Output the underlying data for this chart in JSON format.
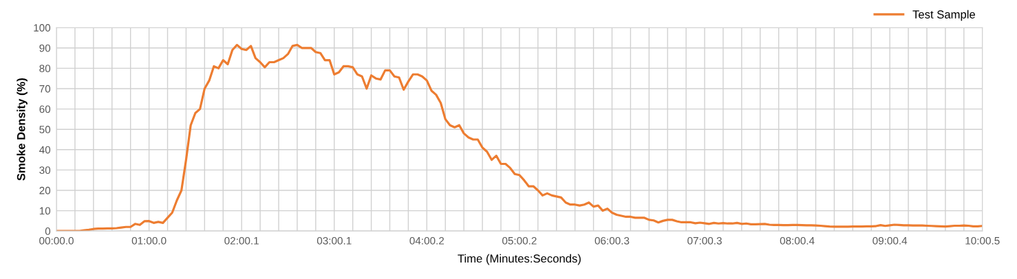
{
  "chart_data": {
    "type": "line",
    "xlabel": "Time (Minutes:Seconds)",
    "ylabel": "Smoke Density (%)",
    "ylim": [
      0,
      100
    ],
    "categories": [
      "00:00.0",
      null,
      null,
      null,
      null,
      null,
      null,
      null,
      null,
      null,
      null,
      null,
      null,
      null,
      null,
      null,
      null,
      null,
      null,
      null,
      "01:00.0",
      null,
      null,
      null,
      null,
      null,
      null,
      null,
      null,
      null,
      null,
      null,
      null,
      null,
      null,
      null,
      null,
      null,
      null,
      null,
      "02:00.1",
      null,
      null,
      null,
      null,
      null,
      null,
      null,
      null,
      null,
      null,
      null,
      null,
      null,
      null,
      null,
      null,
      null,
      null,
      null,
      "03:00.1",
      null,
      null,
      null,
      null,
      null,
      null,
      null,
      null,
      null,
      null,
      null,
      null,
      null,
      null,
      null,
      null,
      null,
      null,
      null,
      "04:00.2",
      null,
      null,
      null,
      null,
      null,
      null,
      null,
      null,
      null,
      null,
      null,
      null,
      null,
      null,
      null,
      null,
      null,
      null,
      null,
      "05:00.2",
      null,
      null,
      null,
      null,
      null,
      null,
      null,
      null,
      null,
      null,
      null,
      null,
      null,
      null,
      null,
      null,
      null,
      null,
      null,
      "06:00.3",
      null,
      null,
      null,
      null,
      null,
      null,
      null,
      null,
      null,
      null,
      null,
      null,
      null,
      null,
      null,
      null,
      null,
      null,
      null,
      "07:00.3",
      null,
      null,
      null,
      null,
      null,
      null,
      null,
      null,
      null,
      null,
      null,
      null,
      null,
      null,
      null,
      null,
      null,
      null,
      null,
      "08:00.4",
      null,
      null,
      null,
      null,
      null,
      null,
      null,
      null,
      null,
      null,
      null,
      null,
      null,
      null,
      null,
      null,
      null,
      null,
      null,
      "09:00.4",
      null,
      null,
      null,
      null,
      null,
      null,
      null,
      null,
      null,
      null,
      null,
      null,
      null,
      null,
      null,
      null,
      null,
      null,
      null,
      "10:00.5"
    ],
    "yticks": [
      0,
      10,
      20,
      30,
      40,
      50,
      60,
      70,
      80,
      90,
      100
    ],
    "grid": true,
    "legend": "top right",
    "line_style": "solid",
    "series": [
      {
        "name": "Test Sample",
        "color": "#ed7d31",
        "values": [
          0,
          0,
          0,
          0,
          0,
          0,
          0.4,
          0.6,
          1.0,
          1.2,
          1.2,
          1.3,
          1.3,
          1.4,
          1.7,
          2.0,
          2.0,
          3.5,
          3.0,
          4.8,
          4.9,
          4.0,
          4.5,
          4.0,
          6.5,
          9,
          15,
          20,
          35,
          52,
          58,
          60,
          70,
          74,
          81,
          80,
          84,
          82,
          89,
          91.5,
          89.5,
          89,
          91,
          85,
          83,
          80.5,
          83,
          83,
          84,
          85,
          87,
          91,
          91.5,
          90,
          90,
          90,
          88,
          87.5,
          84,
          84,
          77,
          78,
          81,
          81,
          80.5,
          77,
          76,
          70,
          76.5,
          75,
          74.5,
          79,
          79,
          76,
          75.5,
          69.5,
          73.5,
          77,
          77,
          76,
          74,
          69,
          67,
          63,
          55,
          52,
          51,
          52,
          48,
          46,
          45,
          45,
          41,
          39,
          35,
          37,
          33,
          33,
          31,
          28,
          27.5,
          25,
          22,
          22,
          20,
          17.5,
          18.5,
          17.5,
          17,
          16.5,
          14,
          13,
          13,
          12.5,
          13,
          14,
          12,
          12.5,
          10,
          11,
          9,
          8,
          7.5,
          7,
          7,
          6.5,
          6.5,
          6.5,
          5.5,
          5.2,
          4.2,
          5,
          5.5,
          5.5,
          4.8,
          4.3,
          4.3,
          4.3,
          3.8,
          4.1,
          3.8,
          3.5,
          4.0,
          3.7,
          3.9,
          3.7,
          3.7,
          4.0,
          3.5,
          3.7,
          3.3,
          3.3,
          3.4,
          3.5,
          3.1,
          3.0,
          3.0,
          2.9,
          2.9,
          3.0,
          3.0,
          2.9,
          2.8,
          2.8,
          2.7,
          2.6,
          2.4,
          2.2,
          2.1,
          2.1,
          2.1,
          2.1,
          2.2,
          2.2,
          2.2,
          2.3,
          2.3,
          2.4,
          2.9,
          2.5,
          2.8,
          3.1,
          3.0,
          2.8,
          2.8,
          2.7,
          2.7,
          2.7,
          2.6,
          2.5,
          2.4,
          2.3,
          2.2,
          2.4,
          2.6,
          2.6,
          2.7,
          2.6,
          2.3,
          2.3,
          2.5
        ]
      }
    ]
  }
}
